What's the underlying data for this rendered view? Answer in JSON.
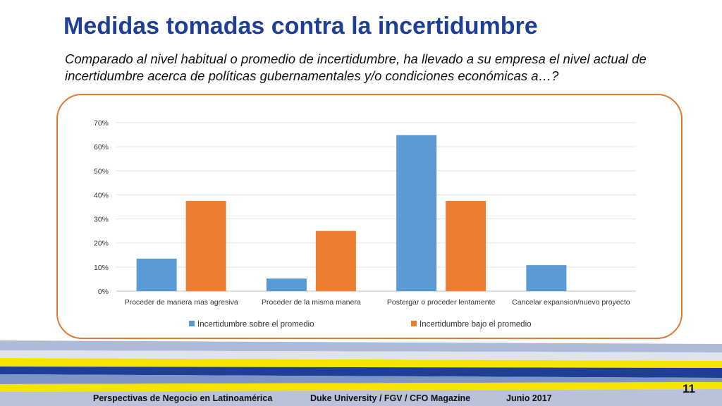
{
  "slide": {
    "title": "Medidas tomadas contra la incertidumbre",
    "subtitle": "Comparado al nivel habitual o promedio de incertidumbre, ha llevado a su empresa el nivel actual de incertidumbre acerca de políticas gubernamentales y/o condiciones económicas a…?",
    "page_number": "11"
  },
  "footer": {
    "left": "Perspectivas de Negocio en Latinoamérica",
    "center": "Duke University / FGV / CFO Magazine",
    "right": "Junio 2017"
  },
  "colors": {
    "title": "#1f3f95",
    "frame_border": "#e07b35",
    "series_above": "#5b9bd5",
    "series_below": "#ed7d31",
    "band_blue": "#1f3f95",
    "band_yellow": "#f5e400"
  },
  "chart_data": {
    "type": "bar",
    "categories": [
      "Proceder de manera mas agresiva",
      "Proceder de la misma manera",
      "Postergar o proceder lentamente",
      "Cancelar expansion/nuevo proyecto"
    ],
    "series": [
      {
        "name": "Incertidumbre sobre el promedio",
        "values": [
          13.5,
          5.2,
          64.8,
          10.8
        ],
        "color": "#5b9bd5"
      },
      {
        "name": "Incertidumbre bajo el promedio",
        "values": [
          37.5,
          25.0,
          37.5,
          0
        ],
        "color": "#ed7d31"
      }
    ],
    "ylim": [
      0,
      70
    ],
    "yticks": [
      "0%",
      "10%",
      "20%",
      "30%",
      "40%",
      "50%",
      "60%",
      "70%"
    ],
    "grid": true,
    "legend_position": "bottom"
  }
}
